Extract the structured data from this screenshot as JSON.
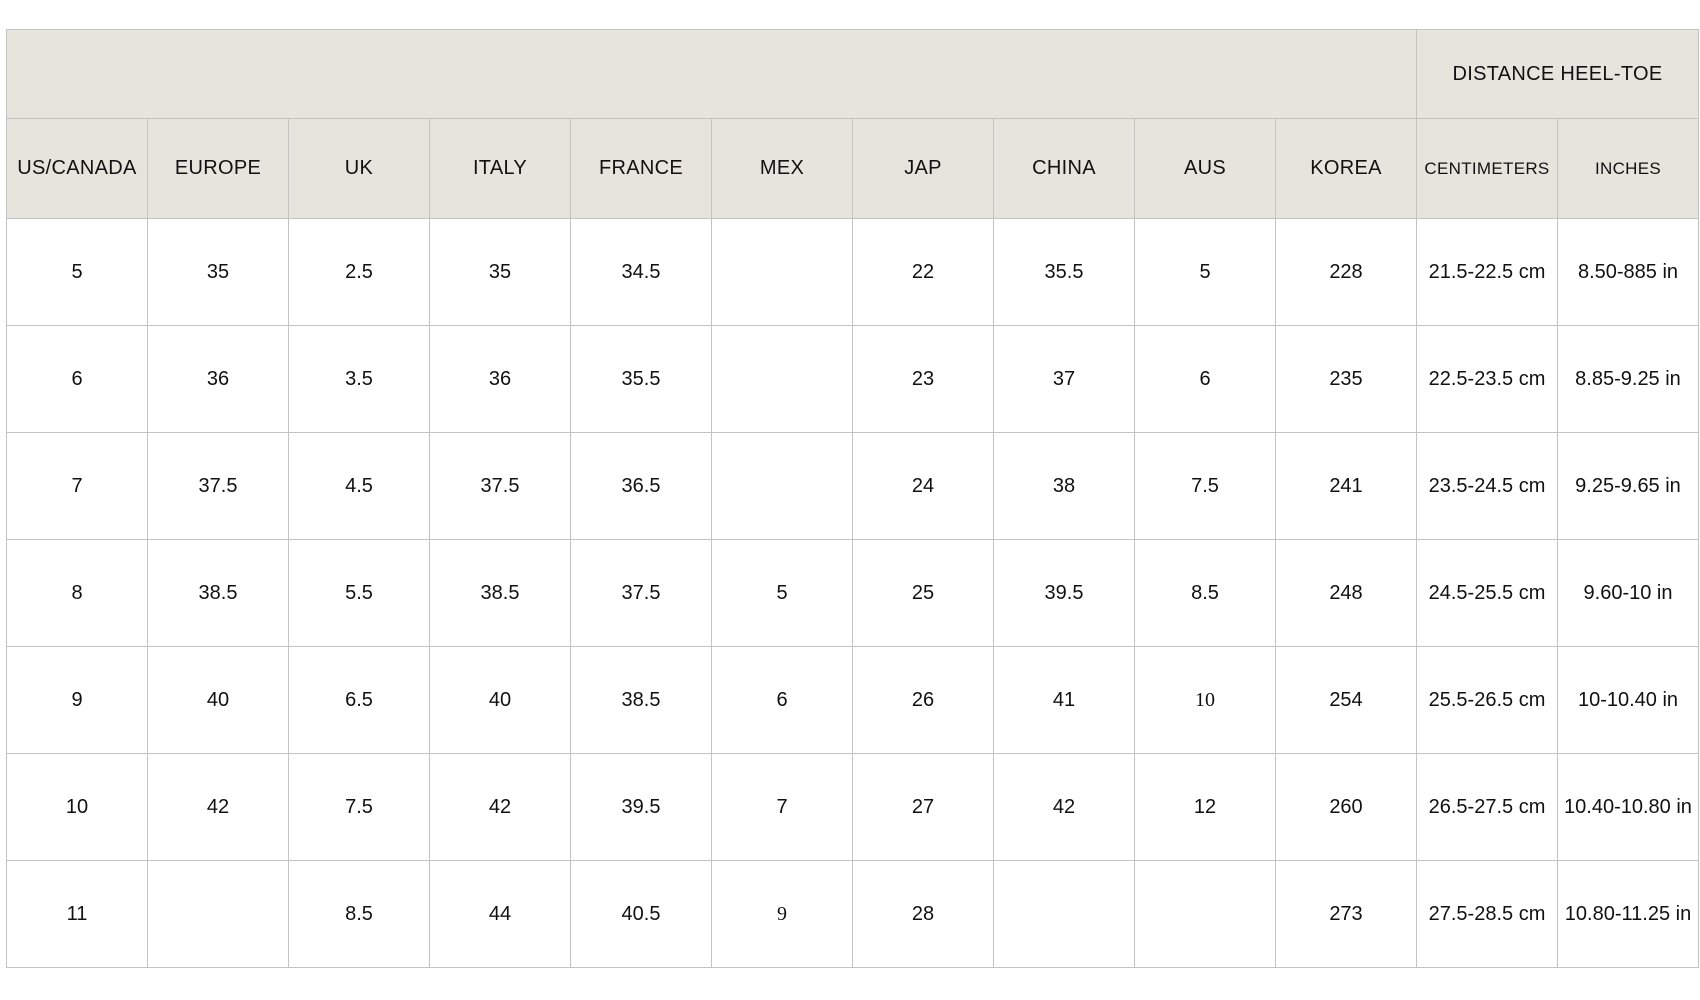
{
  "header": {
    "group_label": "DISTANCE HEEL-TOE",
    "columns": [
      "US/CANADA",
      "EUROPE",
      "UK",
      "ITALY",
      "FRANCE",
      "MEX",
      "JAP",
      "CHINA",
      "AUS",
      "KOREA",
      "CENTIMETERS",
      "INCHES"
    ]
  },
  "rows": [
    [
      "5",
      "35",
      "2.5",
      "35",
      "34.5",
      "",
      "22",
      "35.5",
      "5",
      "228",
      "21.5-22.5 cm",
      "8.50-885 in"
    ],
    [
      "6",
      "36",
      "3.5",
      "36",
      "35.5",
      "",
      "23",
      "37",
      "6",
      "235",
      "22.5-23.5 cm",
      "8.85-9.25 in"
    ],
    [
      "7",
      "37.5",
      "4.5",
      "37.5",
      "36.5",
      "",
      "24",
      "38",
      "7.5",
      "241",
      "23.5-24.5 cm",
      "9.25-9.65 in"
    ],
    [
      "8",
      "38.5",
      "5.5",
      "38.5",
      "37.5",
      "5",
      "25",
      "39.5",
      "8.5",
      "248",
      "24.5-25.5 cm",
      "9.60-10 in"
    ],
    [
      "9",
      "40",
      "6.5",
      "40",
      "38.5",
      "6",
      "26",
      "41",
      "10",
      "254",
      "25.5-26.5 cm",
      "10-10.40 in"
    ],
    [
      "10",
      "42",
      "7.5",
      "42",
      "39.5",
      "7",
      "27",
      "42",
      "12",
      "260",
      "26.5-27.5 cm",
      "10.40-10.80 in"
    ],
    [
      "11",
      "",
      "8.5",
      "44",
      "40.5",
      "9",
      "28",
      "",
      "",
      "273",
      "27.5-28.5 cm",
      "10.80-11.25 in"
    ]
  ],
  "colors": {
    "header_bg": "#e7e4dd",
    "border": "#c3c3c3"
  }
}
